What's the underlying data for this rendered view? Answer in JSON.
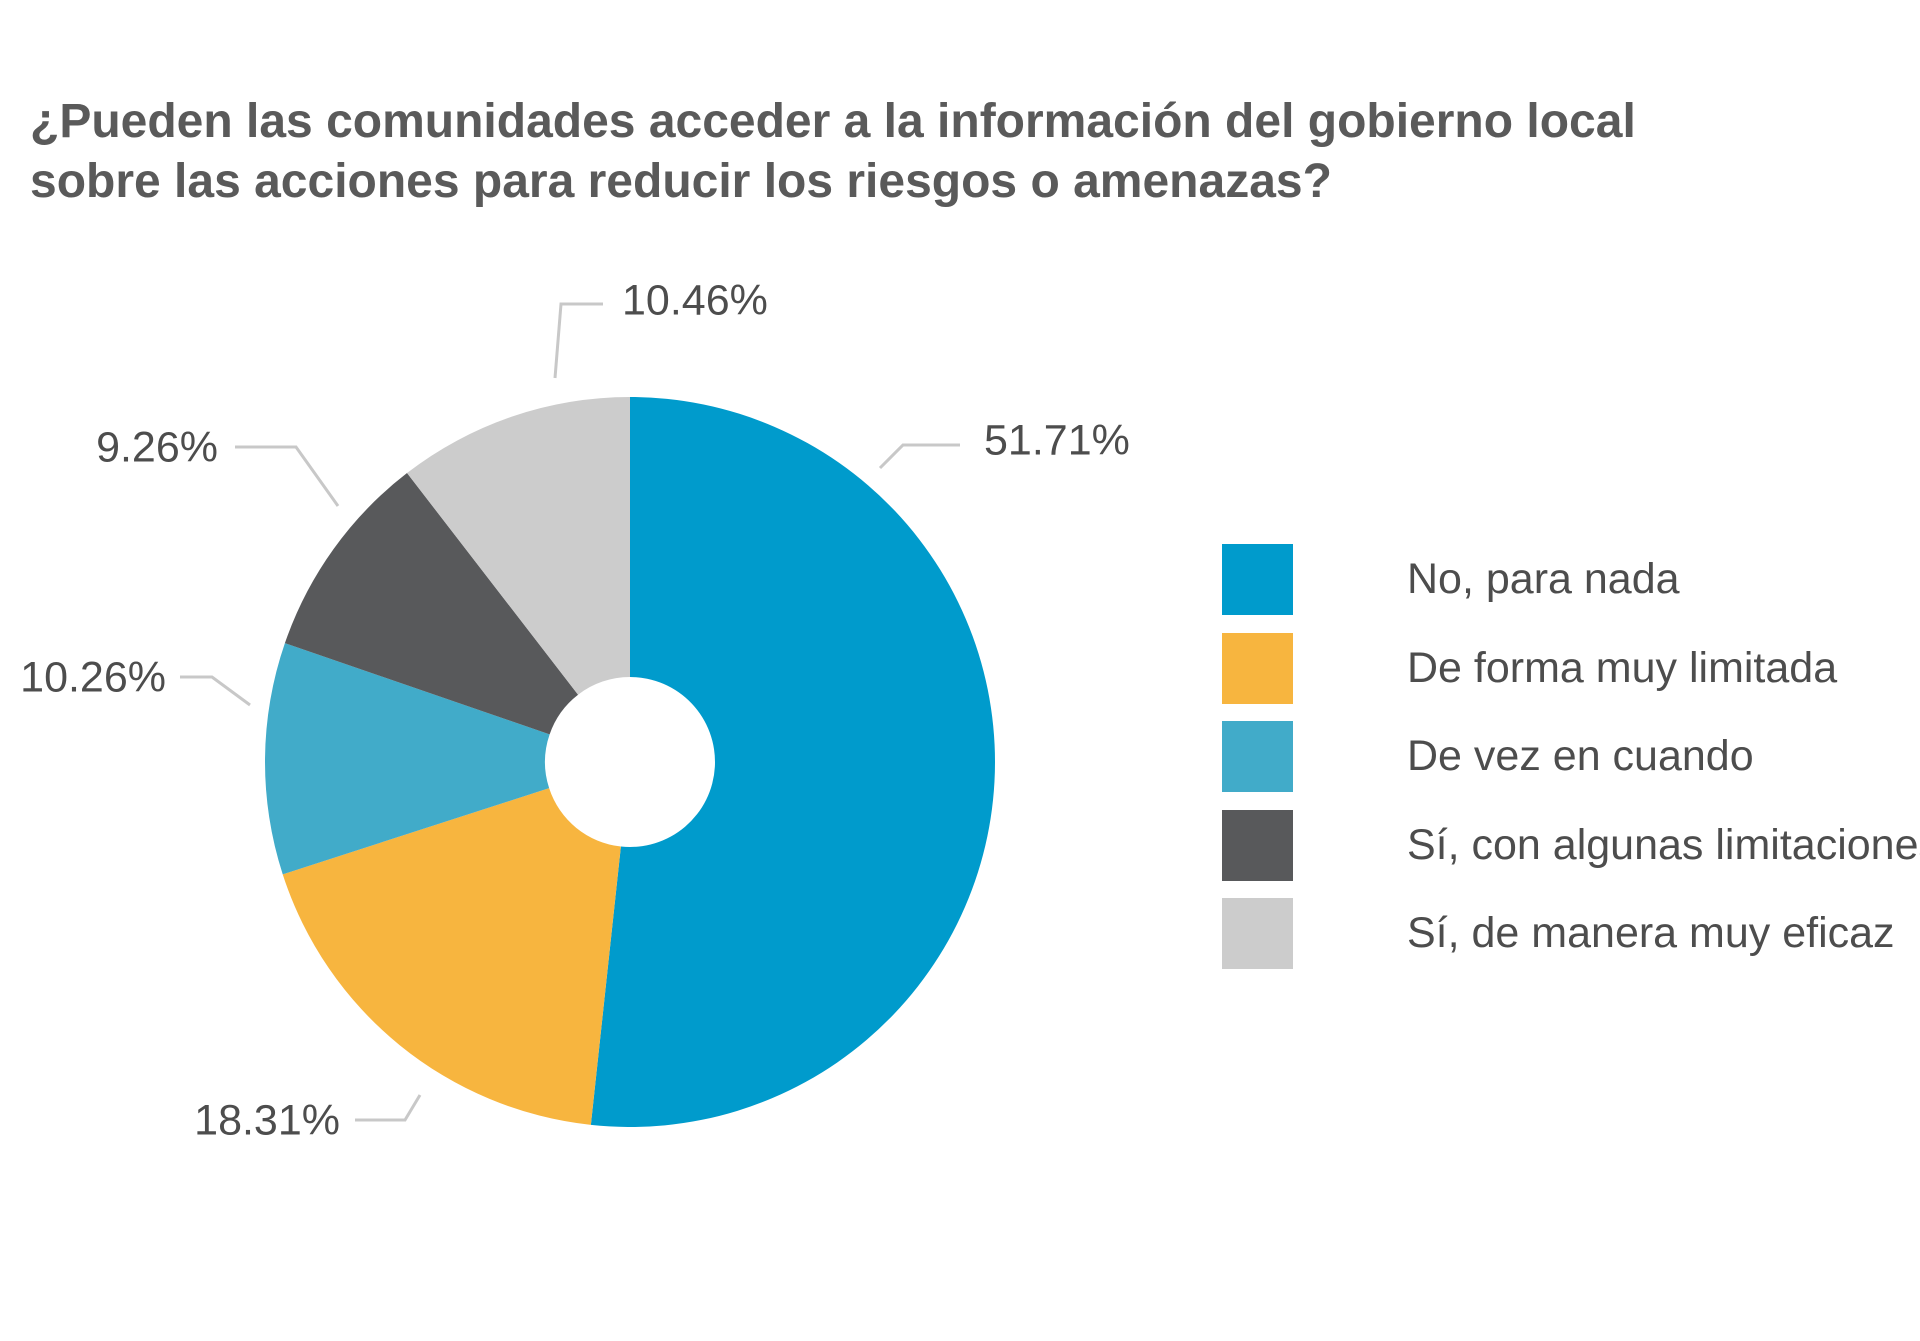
{
  "chart_data": {
    "type": "pie",
    "title_lines": [
      "¿Pueden las comunidades acceder a la información del gobierno local",
      "sobre las acciones para reducir los riesgos o amenazas?"
    ],
    "categories": [
      "No, para nada",
      "De forma muy limitada",
      "De vez en cuando",
      "Sí, con algunas limitaciones",
      "Sí, de manera muy eficaz"
    ],
    "values": [
      51.71,
      18.31,
      10.26,
      9.26,
      10.46
    ],
    "data_labels": [
      "51.71%",
      "18.31%",
      "10.26%",
      "9.26%",
      "10.46%"
    ],
    "colors": [
      "#009bcc",
      "#f7b53f",
      "#41abc9",
      "#58595b",
      "#cccccc"
    ],
    "donut": true,
    "start_angle": "12 o'clock",
    "direction": "clockwise",
    "legend_position": "right",
    "label_style": "outside with leader lines",
    "leader_line_color": "#c8c8c8"
  }
}
